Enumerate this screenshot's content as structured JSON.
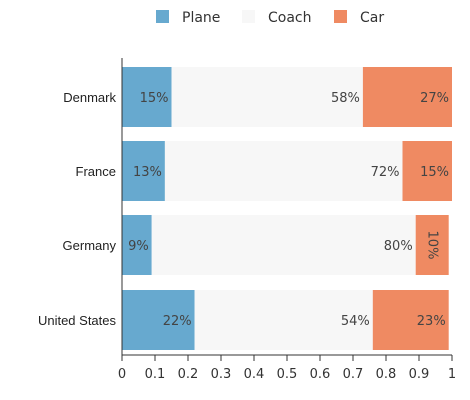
{
  "chart_data": {
    "type": "bar",
    "orientation": "horizontal",
    "stacked": true,
    "normalized": true,
    "categories": [
      "Denmark",
      "France",
      "Germany",
      "United States"
    ],
    "series": [
      {
        "name": "Plane",
        "values": [
          0.15,
          0.13,
          0.09,
          0.22
        ],
        "labels": [
          "15%",
          "13%",
          "9%",
          "22%"
        ],
        "color": "#67a9cf"
      },
      {
        "name": "Coach",
        "values": [
          0.58,
          0.72,
          0.8,
          0.54
        ],
        "labels": [
          "58%",
          "72%",
          "80%",
          "54%"
        ],
        "color": "#f7f7f7"
      },
      {
        "name": "Car",
        "values": [
          0.27,
          0.15,
          0.1,
          0.23
        ],
        "labels": [
          "27%",
          "15%",
          "10%",
          "23%"
        ],
        "color": "#ef8a62"
      }
    ],
    "xlim": [
      0,
      1
    ],
    "xticks": [
      "0",
      "0.1",
      "0.2",
      "0.3",
      "0.4",
      "0.5",
      "0.6",
      "0.7",
      "0.8",
      "0.9",
      "1"
    ],
    "grid": false,
    "legend": "top-center",
    "rotated_label": "10%"
  }
}
